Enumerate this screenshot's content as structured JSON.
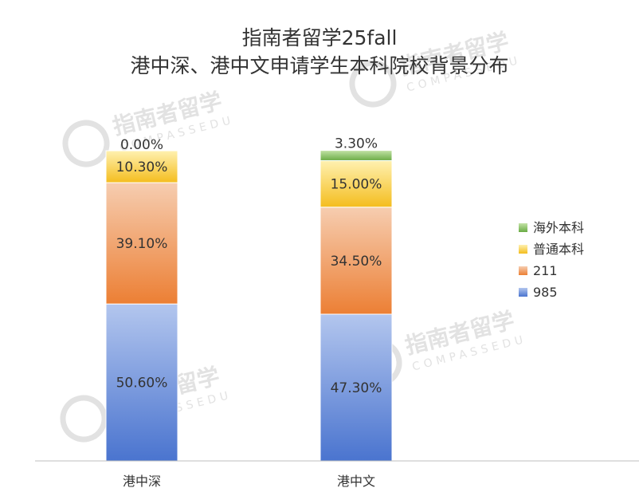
{
  "chart_data": {
    "type": "bar",
    "stacked": true,
    "title": [
      "指南者留学25fall",
      "港中深、港中文申请学生本科院校背景分布"
    ],
    "categories": [
      "港中深",
      "港中文"
    ],
    "series": [
      {
        "name": "985",
        "values": [
          50.6,
          47.3
        ],
        "labels": [
          "50.60%",
          "47.30%"
        ],
        "color_top": "#b3c6ee",
        "color_bottom": "#4a74cf"
      },
      {
        "name": "211",
        "values": [
          39.1,
          34.5
        ],
        "labels": [
          "39.10%",
          "34.50%"
        ],
        "color_top": "#f6cdb0",
        "color_bottom": "#ec7f34"
      },
      {
        "name": "普通本科",
        "values": [
          10.3,
          15.0
        ],
        "labels": [
          "10.30%",
          "15.00%"
        ],
        "color_top": "#fff1b0",
        "color_bottom": "#f4bd1e"
      },
      {
        "name": "海外本科",
        "values": [
          0.0,
          3.3
        ],
        "labels": [
          "0.00%",
          "3.30%"
        ],
        "color_top": "#c3e3a6",
        "color_bottom": "#6aac45"
      }
    ],
    "ylim": [
      0,
      100
    ],
    "legend_position": "right",
    "legend_order": [
      "海外本科",
      "普通本科",
      "211",
      "985"
    ],
    "grid": false
  },
  "watermark": {
    "cn": "指南者留学",
    "en": "COMPASSEDU",
    "color": "#e2e2e2"
  }
}
